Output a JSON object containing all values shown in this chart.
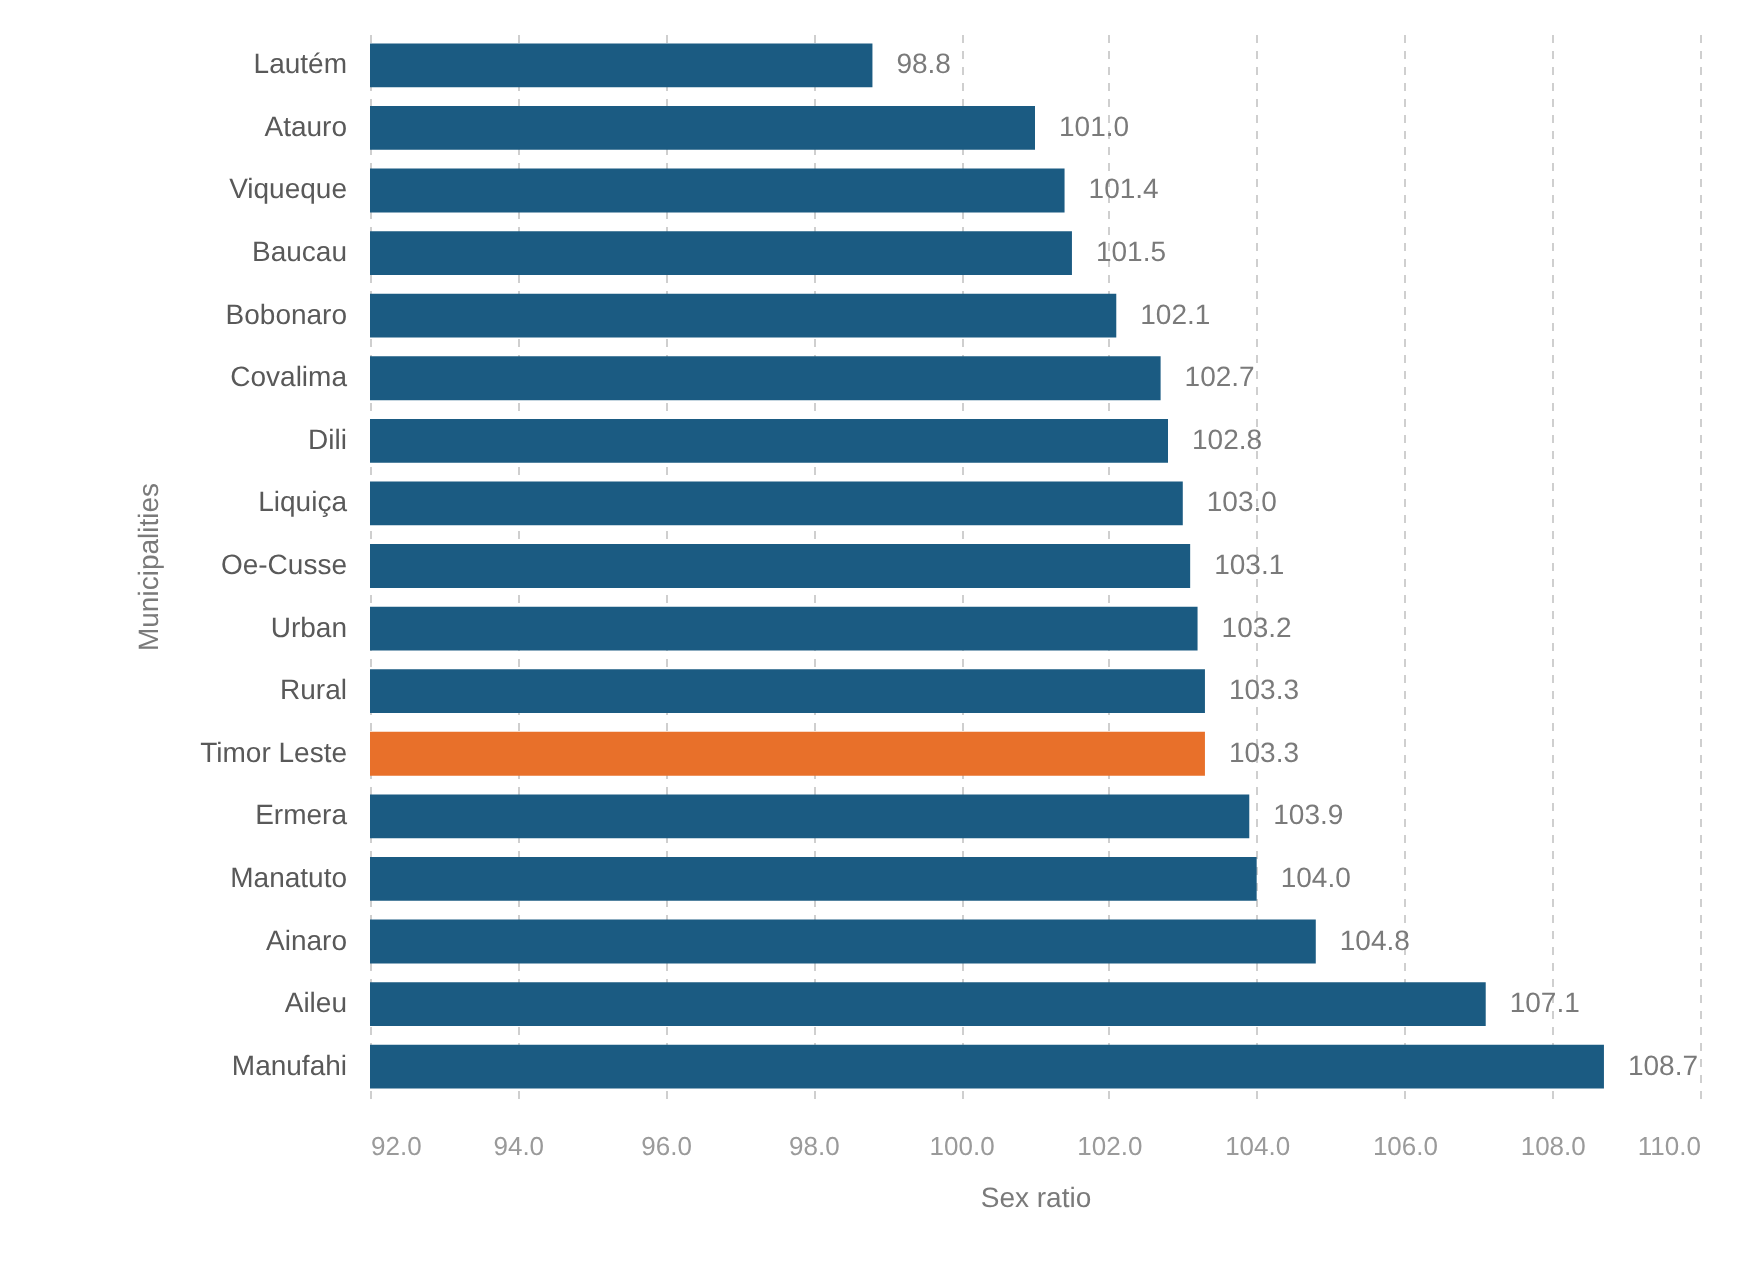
{
  "chart_data": {
    "type": "bar",
    "orientation": "horizontal",
    "xlabel": "Sex ratio",
    "ylabel": "Municipalities",
    "categories": [
      "Lautém",
      "Atauro",
      "Viqueque",
      "Baucau",
      "Bobonaro",
      "Covalima",
      "Dili",
      "Liquiça",
      "Oe-Cusse",
      "Urban",
      "Rural",
      "Timor Leste",
      "Ermera",
      "Manatuto",
      "Ainaro",
      "Aileu",
      "Manufahi"
    ],
    "values": [
      98.8,
      101.0,
      101.4,
      101.5,
      102.1,
      102.7,
      102.8,
      103.0,
      103.1,
      103.2,
      103.3,
      103.3,
      103.9,
      104.0,
      104.8,
      107.1,
      108.7
    ],
    "value_labels": [
      "98.8",
      "101.0",
      "101.4",
      "101.5",
      "102.1",
      "102.7",
      "102.8",
      "103.0",
      "103.1",
      "103.2",
      "103.3",
      "103.3",
      "103.9",
      "104.0",
      "104.8",
      "107.1",
      "108.7"
    ],
    "colors": [
      "#1b5b82",
      "#1b5b82",
      "#1b5b82",
      "#1b5b82",
      "#1b5b82",
      "#1b5b82",
      "#1b5b82",
      "#1b5b82",
      "#1b5b82",
      "#1b5b82",
      "#1b5b82",
      "#e8702a",
      "#1b5b82",
      "#1b5b82",
      "#1b5b82",
      "#1b5b82",
      "#1b5b82"
    ],
    "xlim": [
      92,
      110
    ],
    "xticks": [
      {
        "value": 92,
        "label": "92.0"
      },
      {
        "value": 94,
        "label": "94.0"
      },
      {
        "value": 96,
        "label": "96.0"
      },
      {
        "value": 98,
        "label": "98.0"
      },
      {
        "value": 100,
        "label": "100.0"
      },
      {
        "value": 102,
        "label": "102.0"
      },
      {
        "value": 104,
        "label": "104.0"
      },
      {
        "value": 106,
        "label": "106.0"
      },
      {
        "value": 108,
        "label": "108.0"
      },
      {
        "value": 110,
        "label": "110.0"
      }
    ],
    "grid": "x"
  }
}
